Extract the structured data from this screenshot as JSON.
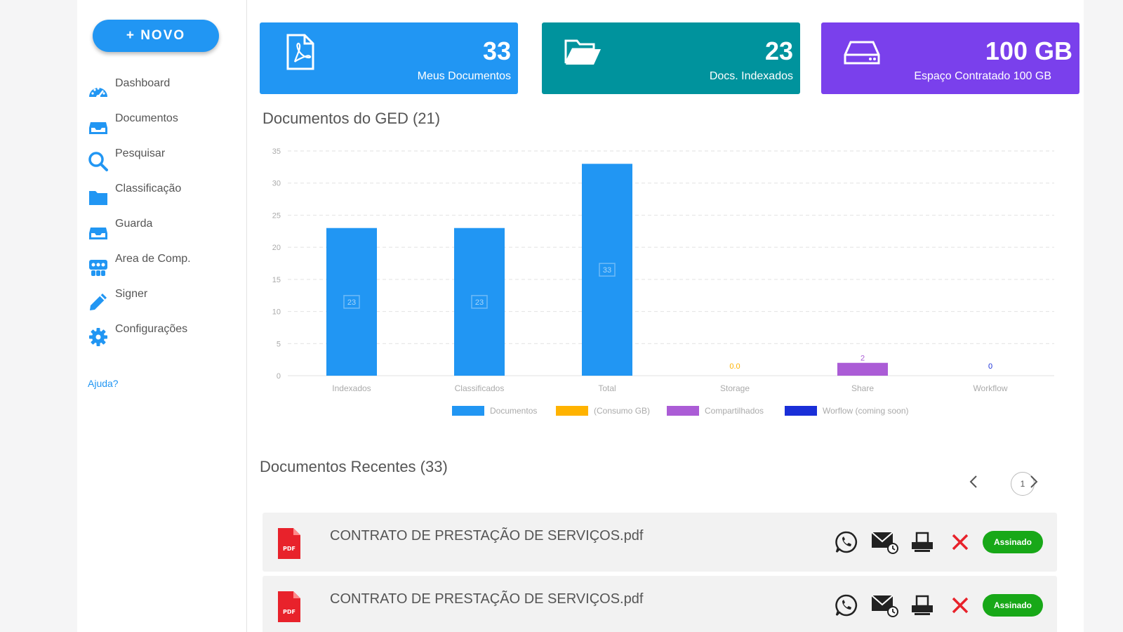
{
  "sidebar": {
    "new_button": "+ NOVO",
    "items": [
      {
        "label": "Dashboard",
        "icon": "dashboard-icon"
      },
      {
        "label": "Documentos",
        "icon": "inbox-icon"
      },
      {
        "label": "Pesquisar",
        "icon": "search-icon"
      },
      {
        "label": "Classificação",
        "icon": "folder-icon"
      },
      {
        "label": "Guarda",
        "icon": "inbox-icon"
      },
      {
        "label": "Area de Comp.",
        "icon": "share-icon"
      },
      {
        "label": "Signer",
        "icon": "pencil-icon"
      },
      {
        "label": "Configurações",
        "icon": "gear-icon"
      }
    ],
    "help_link": "Ajuda?"
  },
  "cards": [
    {
      "value": "33",
      "label": "Meus Documentos",
      "icon": "pdf-file-icon",
      "color": "#2196f3"
    },
    {
      "value": "23",
      "label": "Docs. Indexados",
      "icon": "folder-open-icon",
      "color": "#00939d"
    },
    {
      "value": "100 GB",
      "label": "Espaço Contratado 100 GB",
      "icon": "hard-drive-icon",
      "color": "#7a40ec"
    }
  ],
  "chart_section": {
    "title": "Documentos do GED (21)"
  },
  "chart_data": {
    "type": "bar",
    "categories": [
      "Indexados",
      "Classificados",
      "Total",
      "Storage",
      "Share",
      "Workflow"
    ],
    "ylim": [
      0,
      35
    ],
    "yticks": [
      0,
      5,
      10,
      15,
      20,
      25,
      30,
      35
    ],
    "grid": true,
    "legend_position": "bottom",
    "series": [
      {
        "name": "Documentos",
        "color": "#2196f3",
        "points": [
          {
            "category": "Indexados",
            "value": 23,
            "label": "23"
          },
          {
            "category": "Classificados",
            "value": 23,
            "label": "23"
          },
          {
            "category": "Total",
            "value": 33,
            "label": "33"
          }
        ]
      },
      {
        "name": "(Consumo GB)",
        "color": "#ffb300",
        "points": [
          {
            "category": "Storage",
            "value": 0.0,
            "label": "0.0"
          }
        ]
      },
      {
        "name": "Compartilhados",
        "color": "#ab5cd6",
        "points": [
          {
            "category": "Share",
            "value": 2,
            "label": "2"
          }
        ]
      },
      {
        "name": "Worflow (coming soon)",
        "color": "#1a2fd8",
        "points": [
          {
            "category": "Workflow",
            "value": 0,
            "label": "0"
          }
        ]
      }
    ]
  },
  "recent": {
    "title": "Documentos Recentes (33)",
    "page": "1",
    "rows": [
      {
        "name": "CONTRATO DE PRESTAÇÃO DE SERVIÇOS.pdf",
        "status": "Assinado",
        "file_badge": "PDF"
      },
      {
        "name": "CONTRATO DE PRESTAÇÃO DE SERVIÇOS.pdf",
        "status": "Assinado",
        "file_badge": "PDF"
      }
    ]
  }
}
